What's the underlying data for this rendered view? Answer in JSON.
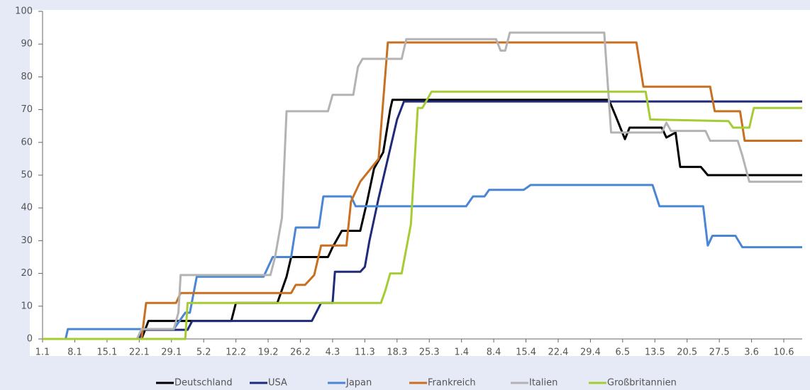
{
  "chart_data": {
    "type": "line",
    "xlim": [
      0,
      165
    ],
    "ylim": [
      0,
      100
    ],
    "yticks": [
      0,
      10,
      20,
      30,
      40,
      50,
      60,
      70,
      80,
      90,
      100
    ],
    "xticks": [
      {
        "value": 0,
        "label": "1.1"
      },
      {
        "value": 7,
        "label": "8.1"
      },
      {
        "value": 14,
        "label": "15.1"
      },
      {
        "value": 21,
        "label": "22.1"
      },
      {
        "value": 28,
        "label": "29.1"
      },
      {
        "value": 35,
        "label": "5.2"
      },
      {
        "value": 42,
        "label": "12.2"
      },
      {
        "value": 49,
        "label": "19.2"
      },
      {
        "value": 56,
        "label": "26.2"
      },
      {
        "value": 63,
        "label": "4.3"
      },
      {
        "value": 70,
        "label": "11.3"
      },
      {
        "value": 77,
        "label": "18.3"
      },
      {
        "value": 84,
        "label": "25.3"
      },
      {
        "value": 91,
        "label": "1.4"
      },
      {
        "value": 98,
        "label": "8.4"
      },
      {
        "value": 105,
        "label": "15.4"
      },
      {
        "value": 112,
        "label": "22.4"
      },
      {
        "value": 119,
        "label": "29.4"
      },
      {
        "value": 126,
        "label": "6.5"
      },
      {
        "value": 133,
        "label": "13.5"
      },
      {
        "value": 140,
        "label": "20.5"
      },
      {
        "value": 147,
        "label": "27.5"
      },
      {
        "value": 154,
        "label": "3.6"
      },
      {
        "value": 161,
        "label": "10.6"
      }
    ],
    "legend": "bottom",
    "series": [
      {
        "name": "Deutschland",
        "color": "#000000",
        "x": [
          0,
          21.5,
          23,
          41,
          42,
          51,
          53,
          54,
          62,
          63,
          65,
          69,
          70.5,
          72,
          74,
          75.5,
          76,
          123,
          124.5,
          126.5,
          127.5,
          134.5,
          135.5,
          137.5,
          138.5,
          143,
          144.5,
          165
        ],
        "values": [
          0,
          0,
          5.5,
          5.5,
          11,
          11,
          19,
          25,
          25,
          28,
          33,
          33,
          42,
          52,
          57,
          70,
          73,
          73,
          68,
          61,
          64.5,
          64.5,
          61.5,
          63,
          52.5,
          52.5,
          50,
          50
        ]
      },
      {
        "name": "USA",
        "color": "#1f2a7a",
        "x": [
          0,
          21,
          21.5,
          31.5,
          32.5,
          58.5,
          60.5,
          63,
          63.5,
          69,
          70,
          71,
          73,
          75,
          77,
          78.5,
          165
        ],
        "values": [
          0,
          0,
          2.8,
          2.8,
          5.5,
          5.5,
          11,
          11,
          20.5,
          20.5,
          22,
          30,
          43,
          55,
          67,
          72.5,
          72.5
        ]
      },
      {
        "name": "Japan",
        "color": "#4a86d4",
        "x": [
          0,
          5,
          5.5,
          28.5,
          31,
          32,
          33.5,
          48,
          50,
          54,
          55,
          60,
          61,
          67,
          68,
          92,
          93.5,
          96,
          97,
          104.5,
          106,
          132.5,
          134,
          143.5,
          144.5,
          145.5,
          150.5,
          152,
          165
        ],
        "values": [
          0,
          0,
          3,
          3,
          8,
          8,
          19,
          19,
          25,
          25,
          34,
          34,
          43.5,
          43.5,
          40.5,
          40.5,
          43.5,
          43.5,
          45.5,
          45.5,
          47,
          47,
          40.5,
          40.5,
          28.5,
          31.5,
          31.5,
          28,
          28
        ]
      },
      {
        "name": "Frankreich",
        "color": "#c87020",
        "x": [
          0,
          21.5,
          22.5,
          29,
          30,
          54,
          55,
          57,
          59,
          60.5,
          66,
          67,
          69,
          73,
          75,
          129,
          130.5,
          145,
          146,
          151.5,
          152.5,
          165
        ],
        "values": [
          0,
          0,
          11,
          11,
          14,
          14,
          16.5,
          16.5,
          19.5,
          28.5,
          28.5,
          42,
          48,
          55,
          90.5,
          90.5,
          77,
          77,
          69.5,
          69.5,
          60.5,
          60.5
        ]
      },
      {
        "name": "Italien",
        "color": "#b3b3b3",
        "x": [
          0,
          20.5,
          21.5,
          28.5,
          29.5,
          30,
          49.5,
          50.5,
          52,
          53,
          62,
          63,
          67.5,
          68.5,
          69.5,
          78,
          79,
          98.5,
          99.5,
          100.5,
          101.5,
          122,
          123.5,
          134.5,
          135.5,
          136.5,
          144,
          145,
          151,
          152,
          153.5,
          165
        ],
        "values": [
          0,
          0,
          3,
          3,
          8,
          19.5,
          19.5,
          25,
          37,
          69.5,
          69.5,
          74.5,
          74.5,
          83,
          85.5,
          85.5,
          91.5,
          91.5,
          88,
          88,
          93.5,
          93.5,
          63,
          63,
          66,
          63.5,
          63.5,
          60.5,
          60.5,
          56,
          48,
          48
        ]
      },
      {
        "name": "Großbritannien",
        "color": "#a6cc33",
        "x": [
          0,
          31,
          31.5,
          73.5,
          74.5,
          75.5,
          78,
          80,
          81.5,
          82.5,
          84.5,
          131,
          132,
          149,
          150,
          153.5,
          154.5,
          165
        ],
        "values": [
          0,
          0,
          11,
          11,
          15,
          20,
          20,
          35,
          70.5,
          70.5,
          75.5,
          75.5,
          67,
          66.5,
          64.5,
          64.5,
          70.5,
          70.5
        ]
      }
    ]
  }
}
